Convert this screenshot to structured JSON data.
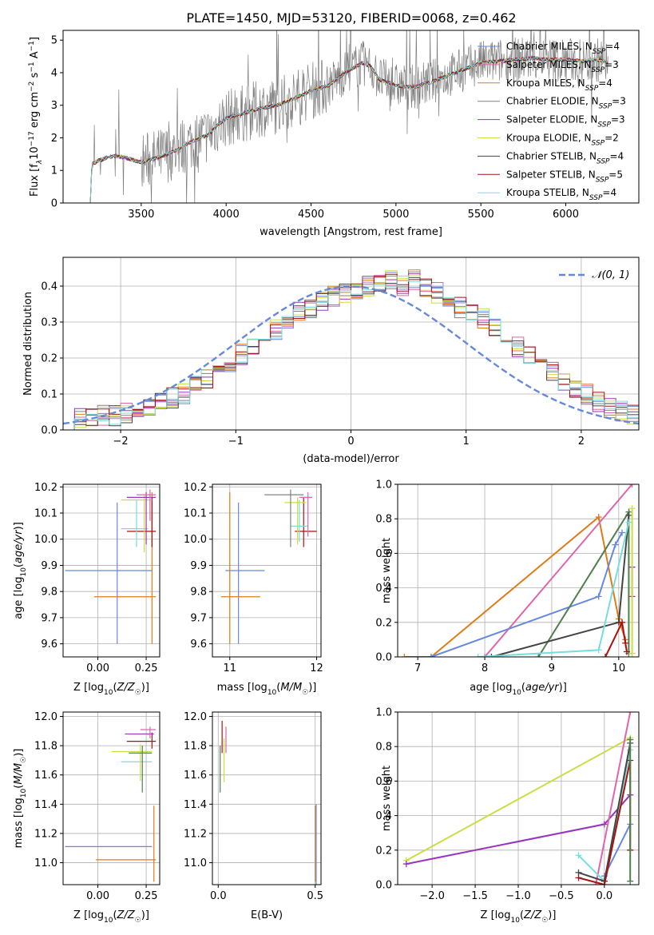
{
  "figure_title": "PLATE=1450, MJD=53120, FIBERID=0068, z=0.462",
  "colors": {
    "Chabrier MILES": "#6688dd",
    "Salpeter MILES": "#dd66aa",
    "Kroupa MILES": "#e07b1a",
    "Chabrier ELODIE": "#808080",
    "Salpeter ELODIE": "#9933bb",
    "Kroupa ELODIE": "#ccdd44",
    "Chabrier STELIB": "#444444",
    "Salpeter STELIB": "#aa1111",
    "Kroupa STELIB": "#77dddd",
    "extra green": "#4f7f4f",
    "normal curve": "#6688dd"
  },
  "chart_data": [
    {
      "id": "spectrum",
      "type": "line",
      "title": "PLATE=1450, MJD=53120, FIBERID=0068, z=0.462",
      "xlabel": "wavelength [Angstrom, rest frame]",
      "ylabel": "Flux [f_λ10^-17 erg cm^-2 s^-1 A^-1]",
      "xlim": [
        3040,
        6430
      ],
      "ylim": [
        0,
        5.3
      ],
      "xticks": [
        3500,
        4000,
        4500,
        5000,
        5500,
        6000
      ],
      "yticks": [
        0,
        1,
        2,
        3,
        4,
        5
      ],
      "legend_position": "right",
      "legend": [
        {
          "name": "Chabrier MILES",
          "label": "Chabrier MILES, N",
          "sub": "SSP",
          "tail": "=4"
        },
        {
          "name": "Salpeter MILES",
          "label": "Salpeter MILES, N",
          "sub": "SSP",
          "tail": "=3"
        },
        {
          "name": "Kroupa MILES",
          "label": "Kroupa MILES, N",
          "sub": "SSP",
          "tail": "=4"
        },
        {
          "name": "Chabrier ELODIE",
          "label": "Chabrier ELODIE, N",
          "sub": "SSP",
          "tail": "=3"
        },
        {
          "name": "Salpeter ELODIE",
          "label": "Salpeter ELODIE, N",
          "sub": "SSP",
          "tail": "=3"
        },
        {
          "name": "Kroupa ELODIE",
          "label": "Kroupa ELODIE, N",
          "sub": "SSP",
          "tail": "=2"
        },
        {
          "name": "Chabrier STELIB",
          "label": "Chabrier STELIB, N",
          "sub": "SSP",
          "tail": "=4"
        },
        {
          "name": "Salpeter STELIB",
          "label": "Salpeter STELIB, N",
          "sub": "SSP",
          "tail": "=5"
        },
        {
          "name": "Kroupa STELIB",
          "label": "Kroupa STELIB, N",
          "sub": "SSP",
          "tail": "=4"
        }
      ],
      "continuum": [
        [
          3200,
          0
        ],
        [
          3210,
          1.2
        ],
        [
          3250,
          1.3
        ],
        [
          3300,
          1.4
        ],
        [
          3350,
          1.45
        ],
        [
          3400,
          1.4
        ],
        [
          3500,
          1.25
        ],
        [
          3600,
          1.4
        ],
        [
          3700,
          1.6
        ],
        [
          3800,
          1.9
        ],
        [
          3900,
          2.1
        ],
        [
          3950,
          2.4
        ],
        [
          4000,
          2.6
        ],
        [
          4100,
          2.75
        ],
        [
          4200,
          2.9
        ],
        [
          4300,
          3.0
        ],
        [
          4400,
          3.2
        ],
        [
          4500,
          3.45
        ],
        [
          4600,
          3.6
        ],
        [
          4700,
          4.0
        ],
        [
          4800,
          4.3
        ],
        [
          4850,
          4.2
        ],
        [
          4900,
          3.8
        ],
        [
          5000,
          3.6
        ],
        [
          5100,
          3.55
        ],
        [
          5200,
          3.7
        ],
        [
          5300,
          3.9
        ],
        [
          5400,
          4.1
        ],
        [
          5500,
          4.3
        ],
        [
          5600,
          4.35
        ],
        [
          5700,
          4.4
        ],
        [
          5800,
          4.45
        ],
        [
          5900,
          4.4
        ],
        [
          6000,
          4.4
        ],
        [
          6100,
          4.35
        ],
        [
          6200,
          4.4
        ],
        [
          6250,
          4.3
        ]
      ]
    },
    {
      "id": "residuals",
      "type": "histogram",
      "xlabel": "(data-model)/error",
      "ylabel": "Normed distribution",
      "xlim": [
        -2.5,
        2.5
      ],
      "ylim": [
        0,
        0.48
      ],
      "xticks": [
        -2,
        -1,
        0,
        1,
        2
      ],
      "yticks": [
        0.0,
        0.1,
        0.2,
        0.3,
        0.4
      ],
      "legend": "𝒩(0, 1)",
      "legend_position": "top-right",
      "bin_width": 0.1,
      "histogram": [
        0.02,
        0.03,
        0.03,
        0.04,
        0.04,
        0.05,
        0.06,
        0.07,
        0.08,
        0.09,
        0.1,
        0.12,
        0.14,
        0.17,
        0.19,
        0.21,
        0.24,
        0.26,
        0.28,
        0.31,
        0.33,
        0.34,
        0.36,
        0.37,
        0.38,
        0.39,
        0.4,
        0.41,
        0.42,
        0.4,
        0.42,
        0.39,
        0.38,
        0.36,
        0.34,
        0.33,
        0.31,
        0.28,
        0.26,
        0.23,
        0.21,
        0.18,
        0.16,
        0.14,
        0.12,
        0.1,
        0.08,
        0.06,
        0.05,
        0.04
      ]
    },
    {
      "id": "age-vs-Z",
      "type": "scatter",
      "xlabel": "Z [log10(Z/Z☉)]",
      "ylabel": "age [log10(age/yr)]",
      "xlim": [
        -0.18,
        0.32
      ],
      "ylim": [
        9.55,
        10.21
      ],
      "xticks": [
        0.0,
        0.25
      ],
      "yticks": [
        9.6,
        9.7,
        9.8,
        9.9,
        10.0,
        10.1,
        10.2
      ],
      "points": [
        {
          "series": "Chabrier MILES",
          "x": 0.1,
          "y": 9.88,
          "xerr": [
            0.27,
            0.18
          ],
          "yerr": [
            0.28,
            0.26
          ]
        },
        {
          "series": "Kroupa MILES",
          "x": 0.28,
          "y": 9.78,
          "xerr": [
            0.3,
            0.02
          ],
          "yerr": [
            0.18,
            0.4
          ]
        },
        {
          "series": "Salpeter STELIB",
          "x": 0.28,
          "y": 10.03,
          "xerr": [
            0.13,
            0.02
          ],
          "yerr": [
            0.06,
            0.13
          ]
        },
        {
          "series": "Kroupa STELIB",
          "x": 0.2,
          "y": 10.04,
          "xerr": [
            0.08,
            0.06
          ],
          "yerr": [
            0.07,
            0.11
          ]
        },
        {
          "series": "Kroupa ELODIE",
          "x": 0.24,
          "y": 10.15,
          "xerr": [
            0.12,
            0.04
          ],
          "yerr": [
            0.2,
            0.02
          ]
        },
        {
          "series": "Salpeter ELODIE",
          "x": 0.25,
          "y": 10.16,
          "xerr": [
            0.1,
            0.05
          ],
          "yerr": [
            0.18,
            0.02
          ]
        },
        {
          "series": "Salpeter MILES",
          "x": 0.27,
          "y": 10.17,
          "xerr": [
            0.07,
            0.03
          ],
          "yerr": [
            0.1,
            0.02
          ]
        }
      ]
    },
    {
      "id": "age-vs-mass",
      "type": "scatter",
      "xlabel": "mass [log10(M/M☉)]",
      "ylabel": "",
      "xlim": [
        10.8,
        12.05
      ],
      "ylim": [
        9.55,
        10.21
      ],
      "xticks": [
        11,
        12
      ],
      "yticks": [
        9.6,
        9.7,
        9.8,
        9.9,
        10.0,
        10.1,
        10.2
      ],
      "points": [
        {
          "series": "Chabrier MILES",
          "x": 11.1,
          "y": 9.88,
          "xerr": [
            0.15,
            0.3
          ],
          "yerr": [
            0.28,
            0.26
          ]
        },
        {
          "series": "Kroupa MILES",
          "x": 11.0,
          "y": 9.78,
          "xerr": [
            0.1,
            0.35
          ],
          "yerr": [
            0.18,
            0.4
          ]
        },
        {
          "series": "Salpeter STELIB",
          "x": 11.85,
          "y": 10.03,
          "xerr": [
            0.1,
            0.15
          ],
          "yerr": [
            0.06,
            0.13
          ]
        },
        {
          "series": "Kroupa STELIB",
          "x": 11.8,
          "y": 10.05,
          "xerr": [
            0.1,
            0.1
          ],
          "yerr": [
            0.06,
            0.1
          ]
        },
        {
          "series": "Kroupa ELODIE",
          "x": 11.78,
          "y": 10.14,
          "xerr": [
            0.15,
            0.1
          ],
          "yerr": [
            0.16,
            0.02
          ]
        },
        {
          "series": "Chabrier ELODIE",
          "x": 11.7,
          "y": 10.17,
          "xerr": [
            0.3,
            0.15
          ],
          "yerr": [
            0.2,
            0.02
          ]
        },
        {
          "series": "Salpeter MILES",
          "x": 11.9,
          "y": 10.16,
          "xerr": [
            0.1,
            0.05
          ],
          "yerr": [
            0.15,
            0.02
          ]
        }
      ]
    },
    {
      "id": "weight-vs-age",
      "type": "line",
      "xlabel": "age [log10(age/yr)]",
      "ylabel": "mass weight",
      "xlim": [
        6.7,
        10.3
      ],
      "ylim": [
        0,
        1
      ],
      "xticks": [
        7,
        8,
        9,
        10
      ],
      "yticks": [
        0.0,
        0.2,
        0.4,
        0.6,
        0.8,
        1.0
      ],
      "series": [
        {
          "name": "Kroupa MILES",
          "points": [
            [
              6.8,
              0.0
            ],
            [
              7.2,
              0.0
            ],
            [
              9.7,
              0.81
            ],
            [
              10.0,
              0.22
            ],
            [
              10.1,
              0.1
            ]
          ]
        },
        {
          "name": "Salpeter MILES",
          "points": [
            [
              8.0,
              0.0
            ],
            [
              10.2,
              1.0
            ]
          ]
        },
        {
          "name": "Chabrier MILES",
          "points": [
            [
              7.2,
              0.0
            ],
            [
              9.7,
              0.35
            ],
            [
              9.95,
              0.65
            ],
            [
              10.05,
              0.72
            ]
          ]
        },
        {
          "name": "extra green",
          "points": [
            [
              8.8,
              0.0
            ],
            [
              10.15,
              0.84
            ],
            [
              10.15,
              0.02
            ]
          ]
        },
        {
          "name": "Chabrier STELIB",
          "points": [
            [
              8.1,
              0.0
            ],
            [
              10.0,
              0.2
            ],
            [
              10.15,
              0.82
            ]
          ]
        },
        {
          "name": "Kroupa STELIB",
          "points": [
            [
              7.9,
              0.0
            ],
            [
              9.7,
              0.04
            ],
            [
              10.15,
              0.78
            ]
          ]
        },
        {
          "name": "Salpeter STELIB",
          "points": [
            [
              9.8,
              0.0
            ],
            [
              10.05,
              0.2
            ],
            [
              10.1,
              0.08
            ],
            [
              10.12,
              0.03
            ]
          ]
        },
        {
          "name": "Salpeter ELODIE",
          "points": [
            [
              10.2,
              0.35
            ],
            [
              10.2,
              0.52
            ]
          ]
        },
        {
          "name": "Kroupa ELODIE",
          "points": [
            [
              10.2,
              0.86
            ],
            [
              10.2,
              0.02
            ]
          ]
        }
      ]
    },
    {
      "id": "mass-vs-Z",
      "type": "scatter",
      "xlabel": "Z [log10(Z/Z☉)]",
      "ylabel": "mass [log10(M/M☉)]",
      "xlim": [
        -0.18,
        0.32
      ],
      "ylim": [
        10.85,
        12.03
      ],
      "xticks": [
        0.0,
        0.25
      ],
      "yticks": [
        11.0,
        11.2,
        11.4,
        11.6,
        11.8,
        12.0
      ],
      "points": [
        {
          "series": "Chabrier MILES",
          "x": 0.1,
          "y": 11.11,
          "xerr": [
            0.27,
            0.18
          ],
          "yerr": [
            0.0,
            0.0
          ]
        },
        {
          "series": "Kroupa MILES",
          "x": 0.29,
          "y": 11.02,
          "xerr": [
            0.3,
            0.01
          ],
          "yerr": [
            0.15,
            0.37
          ]
        },
        {
          "series": "Salpeter STELIB",
          "x": 0.28,
          "y": 11.83,
          "xerr": [
            0.13,
            0.02
          ],
          "yerr": [
            0.05,
            0.06
          ]
        },
        {
          "series": "Kroupa STELIB",
          "x": 0.22,
          "y": 11.69,
          "xerr": [
            0.1,
            0.06
          ],
          "yerr": [
            0.0,
            0.0
          ]
        },
        {
          "series": "Kroupa ELODIE",
          "x": 0.22,
          "y": 11.76,
          "xerr": [
            0.15,
            0.06
          ],
          "yerr": [
            0.2,
            0.05
          ]
        },
        {
          "series": "Salpeter ELODIE",
          "x": 0.24,
          "y": 11.88,
          "xerr": [
            0.1,
            0.05
          ],
          "yerr": [
            0.0,
            0.0
          ]
        },
        {
          "series": "extra green",
          "x": 0.23,
          "y": 11.75,
          "xerr": [
            0.07,
            0.05
          ],
          "yerr": [
            0.27,
            0.05
          ]
        },
        {
          "series": "Salpeter MILES",
          "x": 0.27,
          "y": 11.91,
          "xerr": [
            0.05,
            0.03
          ],
          "yerr": [
            0.06,
            0.02
          ]
        }
      ]
    },
    {
      "id": "mass-vs-ebv",
      "type": "scatter",
      "xlabel": "E(B-V)",
      "ylabel": "",
      "xlim": [
        -0.03,
        0.53
      ],
      "ylim": [
        10.85,
        12.03
      ],
      "xticks": [
        0.0,
        0.5
      ],
      "yticks": [
        11.0,
        11.2,
        11.4,
        11.6,
        11.8,
        12.0
      ],
      "points": [
        {
          "series": "Kroupa MILES",
          "x": 0.5,
          "y": 11.02,
          "xerr": [
            0.0,
            0.0
          ],
          "yerr": [
            0.15,
            0.37
          ]
        },
        {
          "series": "Chabrier MILES",
          "x": 0.505,
          "y": 11.1,
          "xerr": [
            0.0,
            0.0
          ],
          "yerr": [
            0.25,
            0.3
          ]
        },
        {
          "series": "extra green",
          "x": 0.01,
          "y": 11.75,
          "xerr": [
            0.0,
            0.0
          ],
          "yerr": [
            0.27,
            0.05
          ]
        },
        {
          "series": "Salpeter STELIB",
          "x": 0.02,
          "y": 11.85,
          "xerr": [
            0.0,
            0.0
          ],
          "yerr": [
            0.1,
            0.12
          ]
        },
        {
          "series": "Kroupa ELODIE",
          "x": 0.03,
          "y": 11.7,
          "xerr": [
            0.0,
            0.0
          ],
          "yerr": [
            0.15,
            0.15
          ]
        },
        {
          "series": "Salpeter MILES",
          "x": 0.04,
          "y": 11.85,
          "xerr": [
            0.0,
            0.0
          ],
          "yerr": [
            0.1,
            0.08
          ]
        }
      ]
    },
    {
      "id": "weight-vs-Z",
      "type": "line",
      "xlabel": "Z [log10(Z/Z☉)]",
      "ylabel": "mass weight",
      "xlim": [
        -2.4,
        0.4
      ],
      "ylim": [
        0,
        1
      ],
      "xticks": [
        -2.0,
        -1.5,
        -1.0,
        -0.5,
        0.0
      ],
      "yticks": [
        0.0,
        0.2,
        0.4,
        0.6,
        0.8,
        1.0
      ],
      "series": [
        {
          "name": "Kroupa ELODIE",
          "points": [
            [
              -2.3,
              0.14
            ],
            [
              0.3,
              0.85
            ]
          ]
        },
        {
          "name": "Salpeter ELODIE",
          "points": [
            [
              -2.3,
              0.12
            ],
            [
              0.0,
              0.35
            ],
            [
              0.3,
              0.52
            ]
          ]
        },
        {
          "name": "Salpeter MILES",
          "points": [
            [
              -0.1,
              0.0
            ],
            [
              0.3,
              1.0
            ]
          ]
        },
        {
          "name": "Chabrier MILES",
          "points": [
            [
              0.0,
              0.05
            ],
            [
              0.3,
              0.35
            ]
          ]
        },
        {
          "name": "Kroupa STELIB",
          "points": [
            [
              -0.3,
              0.17
            ],
            [
              0.0,
              0.02
            ],
            [
              0.3,
              0.78
            ]
          ]
        },
        {
          "name": "Chabrier STELIB",
          "points": [
            [
              -0.3,
              0.07
            ],
            [
              0.0,
              0.02
            ],
            [
              0.3,
              0.82
            ]
          ]
        },
        {
          "name": "Salpeter STELIB",
          "points": [
            [
              -0.3,
              0.04
            ],
            [
              0.0,
              0.0
            ],
            [
              0.3,
              0.72
            ],
            [
              0.3,
              0.2
            ]
          ]
        },
        {
          "name": "extra green",
          "points": [
            [
              0.3,
              0.84
            ],
            [
              0.3,
              0.02
            ]
          ]
        }
      ]
    }
  ]
}
